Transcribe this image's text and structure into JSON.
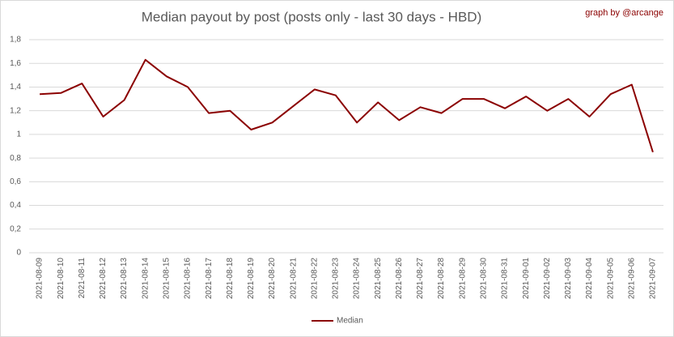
{
  "chart_data": {
    "type": "line",
    "title": "Median payout by post (posts only - last 30 days - HBD)",
    "credit": "graph by @arcange",
    "categories": [
      "2021-08-09",
      "2021-08-10",
      "2021-08-11",
      "2021-08-12",
      "2021-08-13",
      "2021-08-14",
      "2021-08-15",
      "2021-08-16",
      "2021-08-17",
      "2021-08-18",
      "2021-08-19",
      "2021-08-20",
      "2021-08-21",
      "2021-08-22",
      "2021-08-23",
      "2021-08-24",
      "2021-08-25",
      "2021-08-26",
      "2021-08-27",
      "2021-08-28",
      "2021-08-29",
      "2021-08-30",
      "2021-08-31",
      "2021-09-01",
      "2021-09-02",
      "2021-09-03",
      "2021-09-04",
      "2021-09-05",
      "2021-09-06",
      "2021-09-07"
    ],
    "series": [
      {
        "name": "Median",
        "color": "#8b0000",
        "values": [
          1.34,
          1.35,
          1.43,
          1.15,
          1.29,
          1.63,
          1.49,
          1.4,
          1.18,
          1.2,
          1.04,
          1.1,
          1.24,
          1.38,
          1.33,
          1.1,
          1.27,
          1.12,
          1.23,
          1.18,
          1.3,
          1.3,
          1.22,
          1.32,
          1.2,
          1.3,
          1.15,
          1.34,
          1.42,
          0.85
        ]
      }
    ],
    "ylim": [
      0,
      1.8
    ],
    "yticks": [
      0,
      {
        "value": 0.2,
        "label": "0,2"
      },
      {
        "value": 0.4,
        "label": "0,4"
      },
      {
        "value": 0.6,
        "label": "0,6"
      },
      {
        "value": 0.8,
        "label": "0,8"
      },
      1,
      {
        "value": 1.2,
        "label": "1,2"
      },
      {
        "value": 1.4,
        "label": "1,4"
      },
      {
        "value": 1.6,
        "label": "1,6"
      },
      {
        "value": 1.8,
        "label": "1,8"
      }
    ],
    "grid": true,
    "legend": "bottom"
  }
}
